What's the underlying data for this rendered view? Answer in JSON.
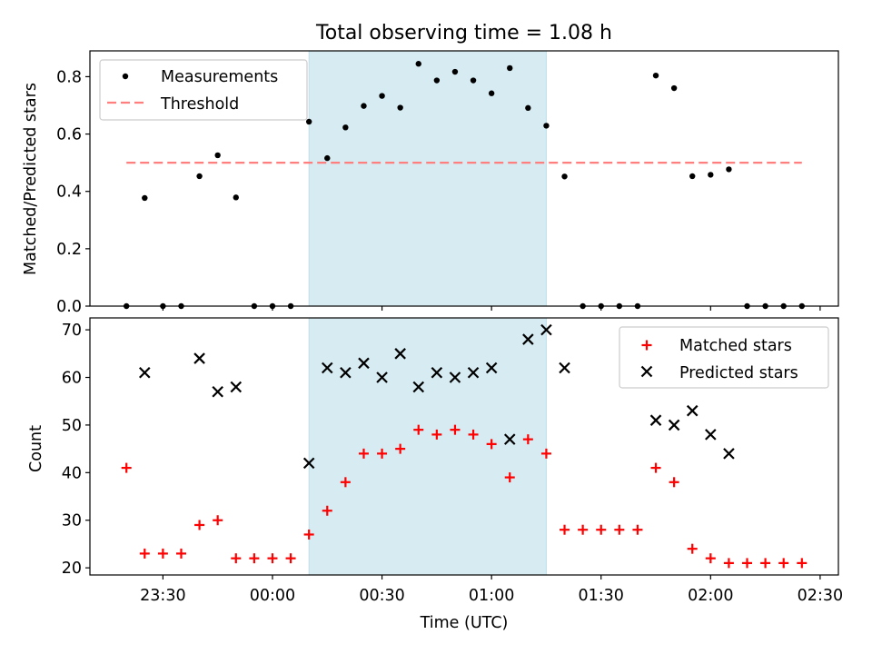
{
  "chart_data": [
    {
      "type": "scatter",
      "title": "Total observing time = 1.08 h",
      "ylabel": "Matched/Predicted stars",
      "xlabel": "",
      "xlim": [
        "23:10",
        "02:35"
      ],
      "ylim": [
        0,
        0.89
      ],
      "yticks": [
        "0.0",
        "0.2",
        "0.4",
        "0.6",
        "0.8"
      ],
      "grid": false,
      "legend": {
        "placement": "upper left",
        "entries": [
          "Measurements",
          "Threshold"
        ]
      },
      "shaded_interval": {
        "x": [
          "00:10",
          "01:15"
        ],
        "color": "#add8e6"
      },
      "series": [
        {
          "name": "Measurements",
          "color": "#000000",
          "marker": "dot",
          "x": [
            "23:20",
            "23:25",
            "23:30",
            "23:35",
            "23:40",
            "23:45",
            "23:50",
            "23:55",
            "00:00",
            "00:05",
            "00:10",
            "00:15",
            "00:20",
            "00:25",
            "00:30",
            "00:35",
            "00:40",
            "00:45",
            "00:50",
            "00:55",
            "01:00",
            "01:05",
            "01:10",
            "01:15",
            "01:20",
            "01:25",
            "01:30",
            "01:35",
            "01:40",
            "01:45",
            "01:50",
            "01:55",
            "02:00",
            "02:05",
            "02:10",
            "02:15",
            "02:20",
            "02:25"
          ],
          "y": [
            0.0,
            0.377,
            0.0,
            0.0,
            0.453,
            0.526,
            0.379,
            0.0,
            0.0,
            0.0,
            0.643,
            0.516,
            0.623,
            0.698,
            0.733,
            0.692,
            0.845,
            0.787,
            0.817,
            0.787,
            0.742,
            0.83,
            0.691,
            0.629,
            0.452,
            0.0,
            0.0,
            0.0,
            0.0,
            0.804,
            0.76,
            0.453,
            0.458,
            0.477,
            0.0,
            0.0,
            0.0,
            0.0
          ]
        },
        {
          "name": "Threshold",
          "color": "#ff7f7f",
          "style": "dashed",
          "x": [
            "23:20",
            "02:25"
          ],
          "y": [
            0.5,
            0.5
          ]
        }
      ]
    },
    {
      "type": "scatter",
      "title": "",
      "ylabel": "Count",
      "xlabel": "Time (UTC)",
      "xlim": [
        "23:10",
        "02:35"
      ],
      "ylim": [
        18.5,
        72.5
      ],
      "yticks": [
        "20",
        "30",
        "40",
        "50",
        "60",
        "70"
      ],
      "xticks": [
        "23:30",
        "00:00",
        "00:30",
        "01:00",
        "01:30",
        "02:00",
        "02:30"
      ],
      "grid": false,
      "legend": {
        "placement": "upper right",
        "entries": [
          "Matched stars",
          "Predicted stars"
        ]
      },
      "shaded_interval": {
        "x": [
          "00:10",
          "01:15"
        ],
        "color": "#add8e6"
      },
      "series": [
        {
          "name": "Matched stars",
          "color": "#ff0000",
          "marker": "plus",
          "x": [
            "23:20",
            "23:25",
            "23:30",
            "23:35",
            "23:40",
            "23:45",
            "23:50",
            "23:55",
            "00:00",
            "00:05",
            "00:10",
            "00:15",
            "00:20",
            "00:25",
            "00:30",
            "00:35",
            "00:40",
            "00:45",
            "00:50",
            "00:55",
            "01:00",
            "01:05",
            "01:10",
            "01:15",
            "01:20",
            "01:25",
            "01:30",
            "01:35",
            "01:40",
            "01:45",
            "01:50",
            "01:55",
            "02:00",
            "02:05",
            "02:10",
            "02:15",
            "02:20",
            "02:25"
          ],
          "y": [
            41,
            23,
            23,
            23,
            29,
            30,
            22,
            22,
            22,
            22,
            27,
            32,
            38,
            44,
            44,
            45,
            49,
            48,
            49,
            48,
            46,
            39,
            47,
            44,
            28,
            28,
            28,
            28,
            28,
            41,
            38,
            24,
            22,
            21,
            21,
            21,
            21,
            21
          ]
        },
        {
          "name": "Predicted stars",
          "color": "#000000",
          "marker": "x",
          "x": [
            "23:25",
            "23:40",
            "23:45",
            "23:50",
            "00:10",
            "00:15",
            "00:20",
            "00:25",
            "00:30",
            "00:35",
            "00:40",
            "00:45",
            "00:50",
            "00:55",
            "01:00",
            "01:05",
            "01:10",
            "01:15",
            "01:20",
            "01:45",
            "01:50",
            "01:55",
            "02:00",
            "02:05"
          ],
          "y": [
            61,
            64,
            57,
            58,
            42,
            62,
            61,
            63,
            60,
            65,
            58,
            61,
            60,
            61,
            62,
            47,
            68,
            70,
            62,
            51,
            50,
            53,
            48,
            44
          ]
        }
      ]
    }
  ]
}
